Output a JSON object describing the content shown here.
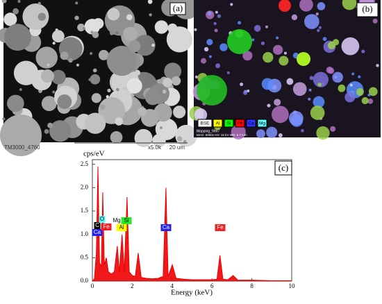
{
  "panels": {
    "a": {
      "label": "(a)",
      "caption": "TM3000_4760",
      "magnification": "x5.0k",
      "scale": "20 um"
    },
    "b": {
      "label": "(b)",
      "legend": [
        {
          "text": "BSE",
          "color": "#ffffff"
        },
        {
          "text": "Al",
          "color": "#ffff00"
        },
        {
          "text": "Si",
          "color": "#00ff00"
        },
        {
          "text": "Fe",
          "color": "#ff0000"
        },
        {
          "text": "Ca",
          "color": "#3333ff"
        },
        {
          "text": "Mg",
          "color": "#66ffff"
        }
      ],
      "info1": "Mapping_9997",
      "info2": "MAG: 5000x  HV: 15 kV  WD: 5.7 mm"
    }
  },
  "chart_data": {
    "type": "area",
    "label": "(c)",
    "y_label": "cps/eV",
    "x_label": "Energy (keV)",
    "color": "#ee0000",
    "xlim": [
      0,
      10
    ],
    "ylim": [
      0,
      2.6
    ],
    "xticks": [
      0,
      2,
      4,
      6,
      8,
      10
    ],
    "yticks": [
      {
        "value": 0,
        "label": "0.0"
      },
      {
        "value": 0.5,
        "label": "0.5"
      },
      {
        "value": 1,
        "label": "1.0"
      },
      {
        "value": 1.5,
        "label": "1.5"
      },
      {
        "value": 2,
        "label": "2.0"
      },
      {
        "value": 2.5,
        "label": "2.5"
      }
    ],
    "x": [
      0,
      0.1,
      0.2,
      0.28,
      0.36,
      0.45,
      0.52,
      0.6,
      0.7,
      0.8,
      0.95,
      1.1,
      1.25,
      1.35,
      1.49,
      1.6,
      1.74,
      1.85,
      2.0,
      2.15,
      2.3,
      2.45,
      2.7,
      3.0,
      3.3,
      3.55,
      3.69,
      3.8,
      4.01,
      4.2,
      4.6,
      5.0,
      5.5,
      6.0,
      6.25,
      6.4,
      6.55,
      6.8,
      7.06,
      7.3,
      8.0,
      9.0,
      10.0
    ],
    "values": [
      0,
      0.05,
      0.6,
      2.45,
      0.4,
      0.3,
      1.9,
      0.35,
      0.5,
      0.2,
      0.15,
      0.2,
      0.75,
      0.2,
      1.0,
      0.2,
      1.8,
      0.2,
      0.12,
      0.1,
      0.6,
      0.08,
      0.06,
      0.05,
      0.06,
      0.1,
      2.0,
      0.1,
      0.35,
      0.06,
      0.04,
      0.03,
      0.03,
      0.03,
      0.04,
      0.55,
      0.04,
      0.03,
      0.12,
      0.02,
      0.02,
      0.01,
      0.01
    ],
    "annotations": [
      {
        "text": "C",
        "color": "#000000"
      },
      {
        "text": "Ca",
        "color": "#2222ee"
      },
      {
        "text": "O",
        "color": "#55ffff"
      },
      {
        "text": "Fe",
        "color": "#ee2222"
      },
      {
        "text": "Mg",
        "color": "#ffffff"
      },
      {
        "text": "Si",
        "color": "#22ee22"
      },
      {
        "text": "Al",
        "color": "#ffff00"
      },
      {
        "text": "Ca",
        "color": "#2222ee"
      },
      {
        "text": "Fe",
        "color": "#ee2222"
      }
    ]
  }
}
